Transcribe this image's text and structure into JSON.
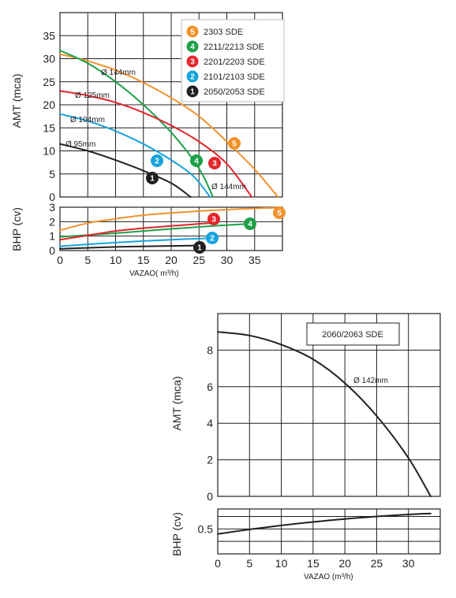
{
  "chart_data": [
    {
      "type": "line",
      "subplot": "AMT",
      "ylabel": "AMT (mca)",
      "xlim": [
        0,
        40
      ],
      "ylim": [
        0,
        40
      ],
      "xticks": [
        0,
        5,
        10,
        15,
        20,
        25,
        30,
        35
      ],
      "yticks": [
        0,
        5,
        10,
        15,
        20,
        25,
        30,
        35
      ],
      "grid": true,
      "legend_position": "top-right",
      "legend": [
        {
          "marker": "5",
          "label": "2303 SDE",
          "color": "#f0922b"
        },
        {
          "marker": "4",
          "label": "2211/2213 SDE",
          "color": "#1fa04a"
        },
        {
          "marker": "3",
          "label": "2201/2203 SDE",
          "color": "#e2262b"
        },
        {
          "marker": "2",
          "label": "2101/2103 SDE",
          "color": "#17a3dd"
        },
        {
          "marker": "1",
          "label": "2050/2053 SDE",
          "color": "#231f20"
        }
      ],
      "annotations": [
        "Ø 144mm",
        "Ø 125mm",
        "Ø 104mm",
        "Ø 95mm",
        "Ø 144mm"
      ],
      "series": [
        {
          "marker": "5",
          "color": "#f0922b",
          "x": [
            0,
            5,
            10,
            15,
            20,
            25,
            30,
            35,
            39.2
          ],
          "y": [
            31,
            29.5,
            27.5,
            24.8,
            21.5,
            17.5,
            12,
            6,
            0
          ]
        },
        {
          "marker": "4",
          "color": "#1fa04a",
          "x": [
            0,
            5,
            10,
            15,
            20,
            24,
            26,
            27.5
          ],
          "y": [
            31.8,
            29,
            25,
            20,
            14,
            8,
            4,
            0
          ]
        },
        {
          "marker": "3",
          "color": "#e2262b",
          "x": [
            0,
            5,
            10,
            15,
            20,
            25,
            30,
            34.5
          ],
          "y": [
            23,
            22,
            20.5,
            18.3,
            15.5,
            12,
            7.2,
            0
          ]
        },
        {
          "marker": "2",
          "color": "#17a3dd",
          "x": [
            0,
            5,
            10,
            15,
            20,
            24,
            27
          ],
          "y": [
            18,
            16.5,
            14.3,
            11.5,
            8,
            4.5,
            0
          ]
        },
        {
          "marker": "1",
          "color": "#231f20",
          "x": [
            0,
            5,
            10,
            15,
            20,
            23.5
          ],
          "y": [
            11.5,
            10,
            8,
            5.7,
            3,
            0
          ]
        }
      ]
    },
    {
      "type": "line",
      "subplot": "BHP",
      "ylabel": "BHP (cv)",
      "xlabel": "VAZAO( m³/h)",
      "xlim": [
        0,
        40
      ],
      "ylim": [
        0,
        3
      ],
      "xticks": [
        0,
        5,
        10,
        15,
        20,
        25,
        30,
        35
      ],
      "yticks": [
        0,
        1,
        2,
        3
      ],
      "grid": true,
      "series": [
        {
          "marker": "5",
          "color": "#f0922b",
          "x": [
            0,
            5,
            10,
            15,
            20,
            25,
            30,
            35,
            39.2
          ],
          "y": [
            1.4,
            1.9,
            2.2,
            2.45,
            2.6,
            2.73,
            2.83,
            2.92,
            2.97
          ]
        },
        {
          "marker": "4",
          "color": "#1fa04a",
          "x": [
            0,
            10,
            20,
            27.5,
            34
          ],
          "y": [
            0.95,
            1.2,
            1.5,
            1.7,
            1.85
          ]
        },
        {
          "marker": "3",
          "color": "#e2262b",
          "x": [
            0,
            5,
            10,
            15,
            20,
            25,
            27
          ],
          "y": [
            0.75,
            1.05,
            1.35,
            1.55,
            1.7,
            1.85,
            1.9
          ]
        },
        {
          "marker": "2",
          "color": "#17a3dd",
          "x": [
            0,
            10,
            20,
            27
          ],
          "y": [
            0.3,
            0.55,
            0.75,
            0.85
          ]
        },
        {
          "marker": "1",
          "color": "#231f20",
          "x": [
            0,
            10,
            20,
            25
          ],
          "y": [
            0.12,
            0.25,
            0.32,
            0.35
          ]
        }
      ]
    },
    {
      "type": "line",
      "subplot": "AMT",
      "ylabel": "AMT (mca)",
      "xlim": [
        0,
        35
      ],
      "ylim": [
        0,
        10
      ],
      "xticks": [
        0,
        5,
        10,
        15,
        20,
        25,
        30
      ],
      "yticks": [
        0,
        2,
        4,
        6,
        8
      ],
      "grid": true,
      "legend_position": "top-right",
      "legend": [
        {
          "label": "2060/2063 SDE"
        }
      ],
      "annotations": [
        "Ø 142mm"
      ],
      "series": [
        {
          "color": "#231f20",
          "x": [
            0,
            5,
            10,
            15,
            20,
            25,
            30,
            33.5
          ],
          "y": [
            9,
            8.8,
            8.3,
            7.5,
            6.2,
            4.4,
            2.1,
            0
          ]
        }
      ]
    },
    {
      "type": "line",
      "subplot": "BHP",
      "ylabel": "BHP (cv)",
      "xlabel": "VAZAO (m³/h)",
      "xlim": [
        0,
        35
      ],
      "ylim": [
        0,
        0.9
      ],
      "xticks": [
        0,
        5,
        10,
        15,
        20,
        25,
        30
      ],
      "yticks": [
        0.5
      ],
      "grid": true,
      "series": [
        {
          "color": "#231f20",
          "x": [
            0,
            5,
            10,
            15,
            20,
            25,
            30,
            33.5
          ],
          "y": [
            0.4,
            0.49,
            0.57,
            0.64,
            0.7,
            0.75,
            0.79,
            0.81
          ]
        }
      ]
    }
  ]
}
